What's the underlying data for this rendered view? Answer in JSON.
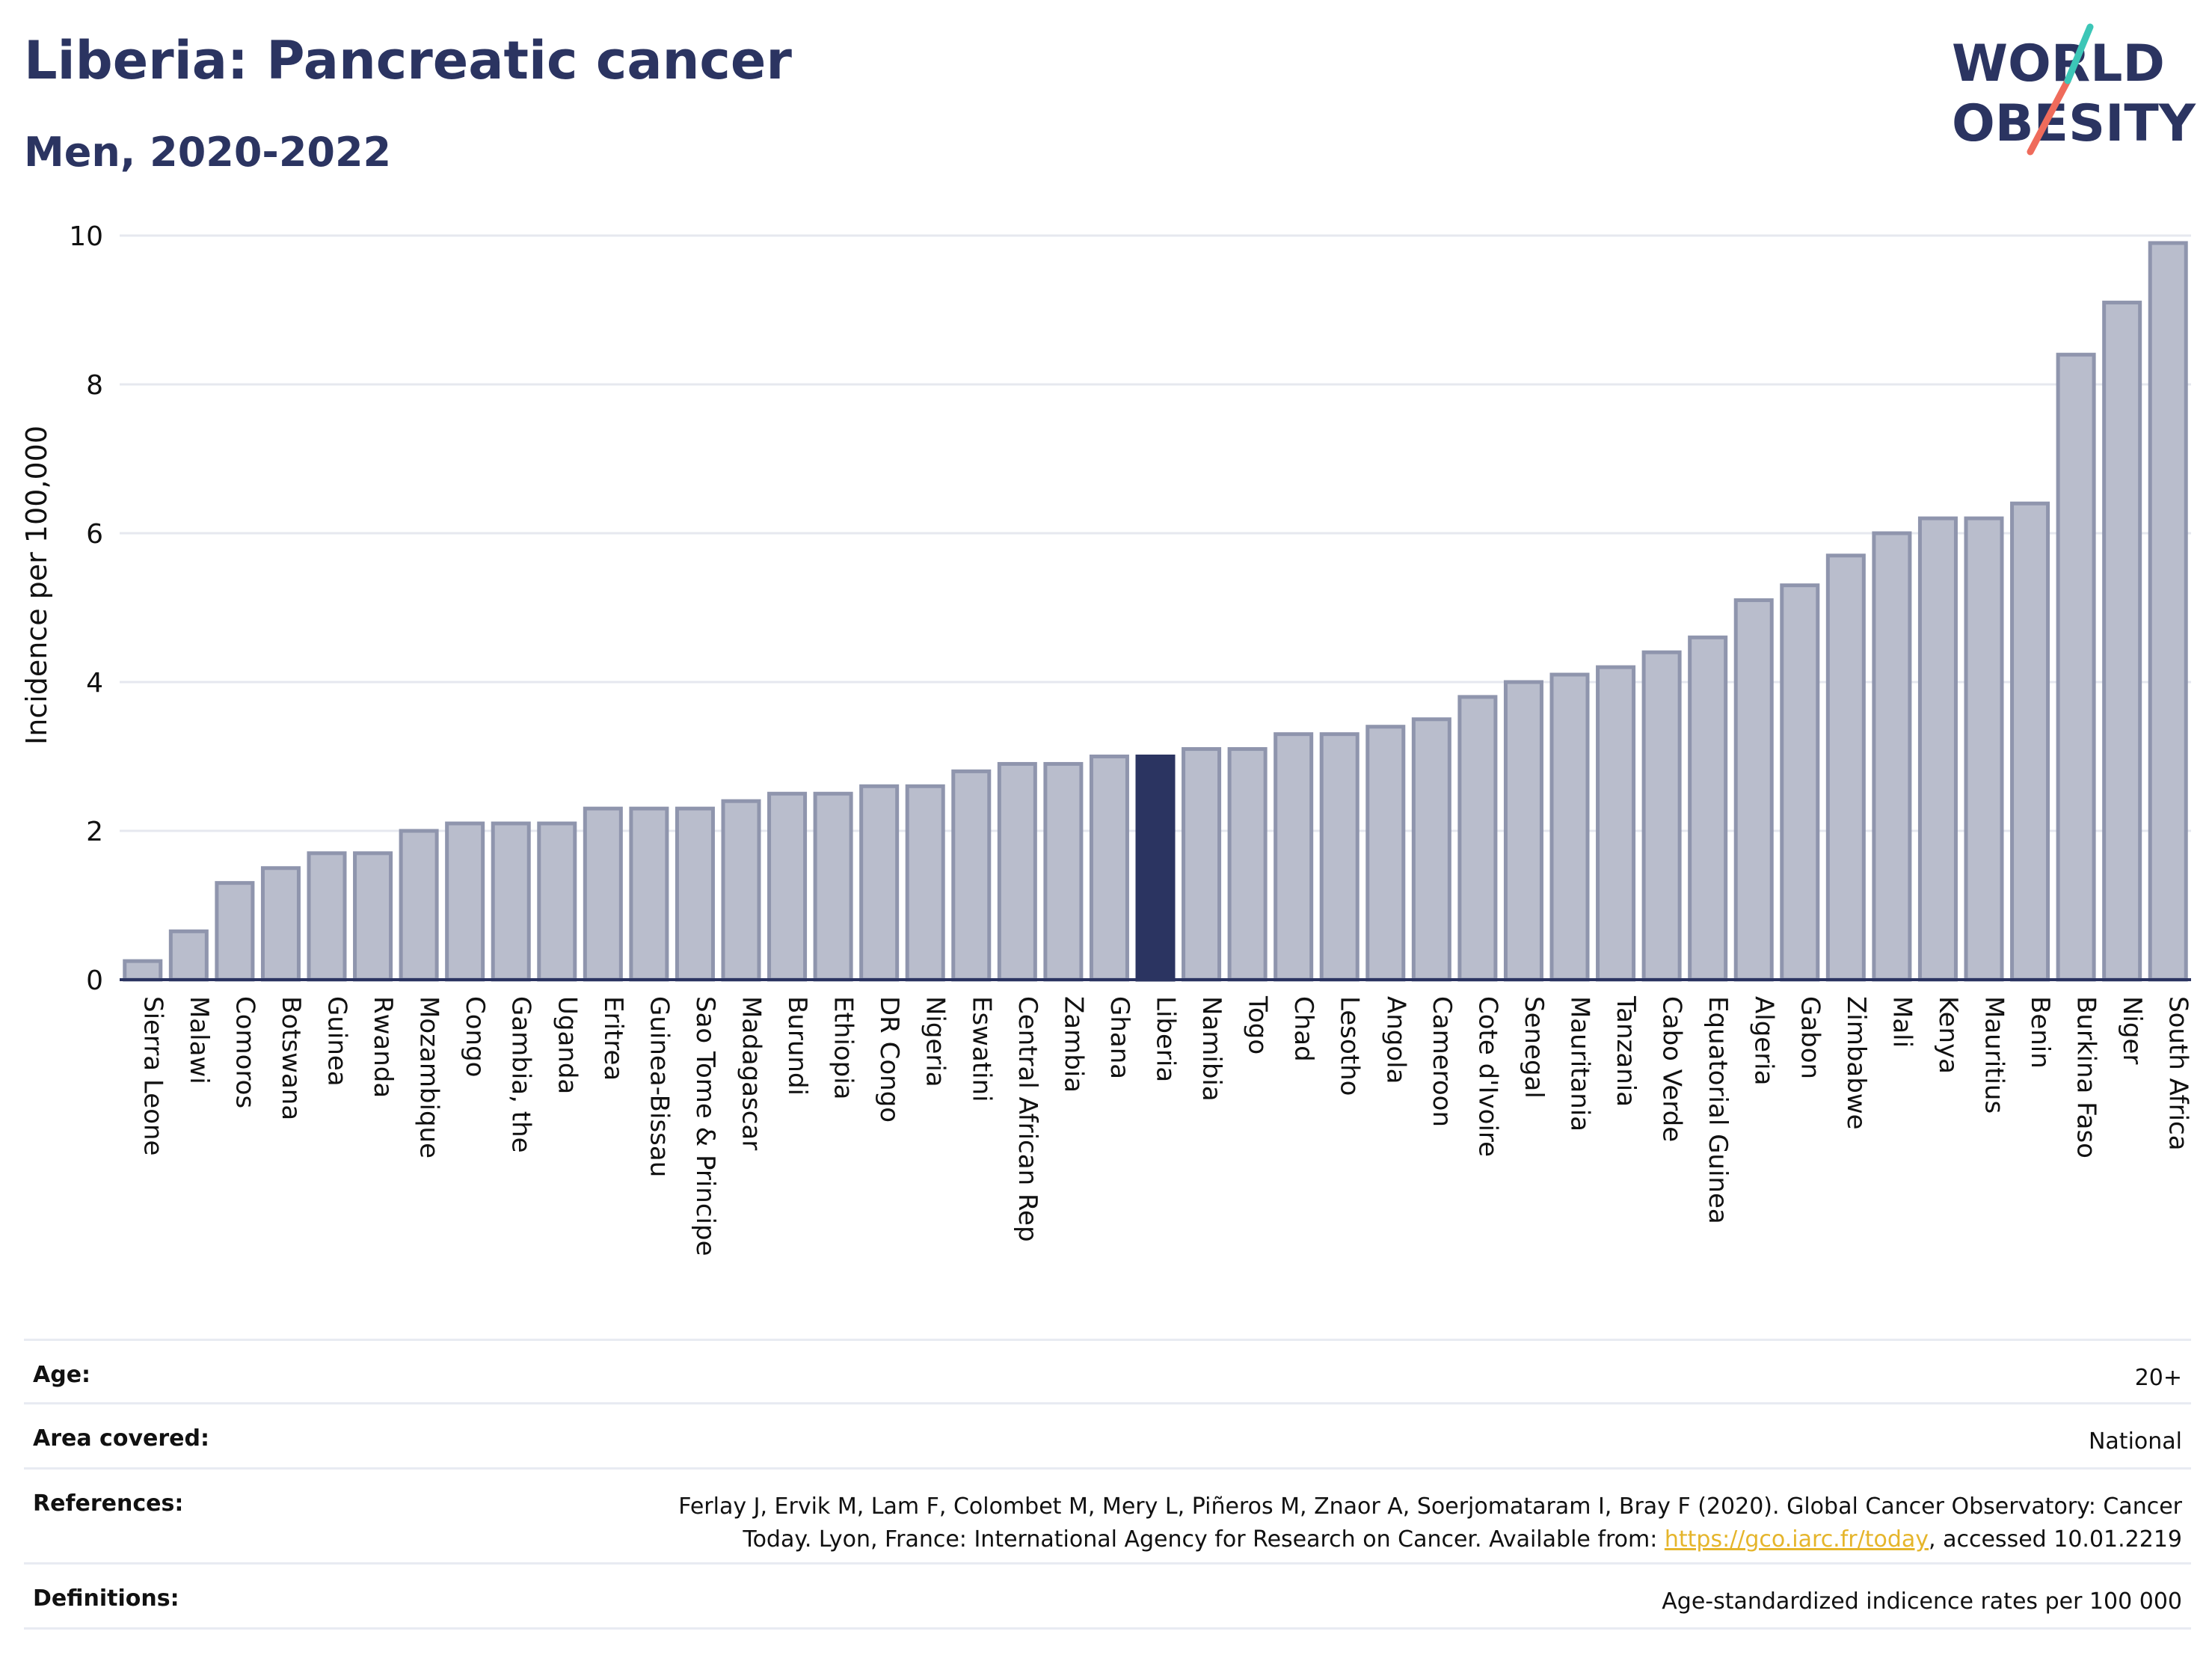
{
  "header": {
    "title": "Liberia: Pancreatic cancer",
    "subtitle": "Men, 2020-2022"
  },
  "logo": {
    "line1": "WORLD",
    "line2": "OBESITY"
  },
  "colors": {
    "bar": "#b9bdcc",
    "bar_stroke": "#8f95ad",
    "highlight": "#2b3461",
    "grid": "#e6e8ef",
    "axis": "#2b3461",
    "link": "#e5b52b"
  },
  "chart_data": {
    "type": "bar",
    "ylabel": "Incidence per 100,000",
    "ylim": [
      0,
      10
    ],
    "yticks": [
      0,
      2,
      4,
      6,
      8,
      10
    ],
    "highlight": "Liberia",
    "categories": [
      "Sierra Leone",
      "Malawi",
      "Comoros",
      "Botswana",
      "Guinea",
      "Rwanda",
      "Mozambique",
      "Congo",
      "Gambia, the",
      "Uganda",
      "Eritrea",
      "Guinea-Bissau",
      "Sao Tome & Principe",
      "Madagascar",
      "Burundi",
      "Ethiopia",
      "DR Congo",
      "Nigeria",
      "Eswatini",
      "Central African Rep",
      "Zambia",
      "Ghana",
      "Liberia",
      "Namibia",
      "Togo",
      "Chad",
      "Lesotho",
      "Angola",
      "Cameroon",
      "Cote d'Ivoire",
      "Senegal",
      "Mauritania",
      "Tanzania",
      "Cabo Verde",
      "Equatorial Guinea",
      "Algeria",
      "Gabon",
      "Zimbabwe",
      "Mali",
      "Kenya",
      "Mauritius",
      "Benin",
      "Burkina Faso",
      "Niger",
      "South Africa"
    ],
    "values": [
      0.25,
      0.65,
      1.3,
      1.5,
      1.7,
      1.7,
      2.0,
      2.1,
      2.1,
      2.1,
      2.3,
      2.3,
      2.3,
      2.4,
      2.5,
      2.5,
      2.6,
      2.6,
      2.8,
      2.9,
      2.9,
      3.0,
      3.0,
      3.1,
      3.1,
      3.3,
      3.3,
      3.4,
      3.5,
      3.8,
      4.0,
      4.1,
      4.2,
      4.4,
      4.6,
      5.1,
      5.3,
      5.7,
      6.0,
      6.2,
      6.2,
      6.4,
      8.4,
      9.1,
      9.9
    ],
    "grid": true
  },
  "footer": {
    "age_label": "Age:",
    "age_value": "20+",
    "area_label": "Area covered:",
    "area_value": "National",
    "references_label": "References:",
    "references_text": "Ferlay J, Ervik M, Lam F, Colombet M, Mery L, Piñeros M, Znaor A, Soerjomataram I, Bray F (2020). Global Cancer Observatory: Cancer Today. Lyon, France: International Agency for Research on Cancer. Available from: ",
    "references_link": "https://gco.iarc.fr/today",
    "references_suffix": ", accessed 10.01.2219",
    "definitions_label": "Definitions:",
    "definitions_value": "Age-standardized indicence rates per 100 000"
  }
}
